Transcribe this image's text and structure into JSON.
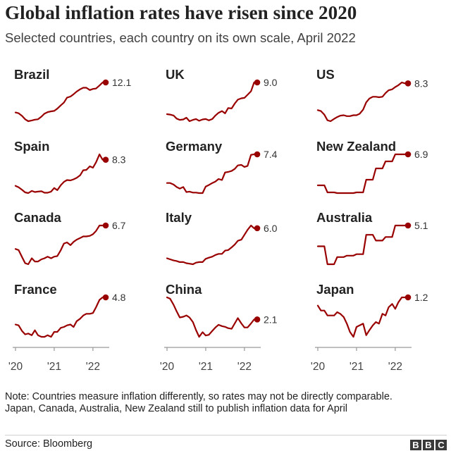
{
  "title": "Global inflation rates have risen since 2020",
  "subtitle": "Selected countries, each country on its own scale, April 2022",
  "note_lines": [
    "Note: Countries measure inflation differently, so rates may not be directly comparable.",
    "Japan, Canada, Australia, New Zealand still to publish inflation data for April"
  ],
  "source": "Source: Bloomberg",
  "logo": [
    "B",
    "B",
    "C"
  ],
  "colors": {
    "line": "#990000",
    "axis": "#999999",
    "text": "#222222"
  },
  "chart_data": {
    "type": "line",
    "x_start": 2020.0,
    "x_end": 2022.33,
    "x_ticks": [
      2020,
      2021,
      2022
    ],
    "x_tick_labels": [
      "'20",
      "'21",
      "'22"
    ],
    "panels": [
      {
        "name": "Brazil",
        "label": "12.1",
        "x": [
          2020.0,
          2020.08,
          2020.17,
          2020.25,
          2020.33,
          2020.42,
          2020.5,
          2020.58,
          2020.67,
          2020.75,
          2020.83,
          2020.92,
          2021.0,
          2021.08,
          2021.17,
          2021.25,
          2021.33,
          2021.42,
          2021.5,
          2021.58,
          2021.67,
          2021.75,
          2021.83,
          2021.92,
          2022.0,
          2022.08,
          2022.17,
          2022.25,
          2022.33
        ],
        "y": [
          4.2,
          4.0,
          3.3,
          2.4,
          1.9,
          2.1,
          2.3,
          2.4,
          3.1,
          3.9,
          4.3,
          4.5,
          4.6,
          5.2,
          6.1,
          6.8,
          8.1,
          8.4,
          9.0,
          9.7,
          10.3,
          10.7,
          10.7,
          10.1,
          10.4,
          10.5,
          11.3,
          12.1,
          12.1
        ]
      },
      {
        "name": "UK",
        "label": "9.0",
        "x": [
          2020.0,
          2020.08,
          2020.17,
          2020.25,
          2020.33,
          2020.42,
          2020.5,
          2020.58,
          2020.67,
          2020.75,
          2020.83,
          2020.92,
          2021.0,
          2021.08,
          2021.17,
          2021.25,
          2021.33,
          2021.42,
          2021.5,
          2021.58,
          2021.67,
          2021.75,
          2021.83,
          2021.92,
          2022.0,
          2022.08,
          2022.17,
          2022.25,
          2022.33
        ],
        "y": [
          1.8,
          1.7,
          1.5,
          0.8,
          0.5,
          0.6,
          1.0,
          0.2,
          0.5,
          0.7,
          0.3,
          0.6,
          0.7,
          0.4,
          0.7,
          1.5,
          2.1,
          2.5,
          2.0,
          3.2,
          3.1,
          4.2,
          5.1,
          5.4,
          5.5,
          6.2,
          7.0,
          9.0,
          9.0
        ]
      },
      {
        "name": "US",
        "label": "8.3",
        "x": [
          2020.0,
          2020.08,
          2020.17,
          2020.25,
          2020.33,
          2020.42,
          2020.5,
          2020.58,
          2020.67,
          2020.75,
          2020.83,
          2020.92,
          2021.0,
          2021.08,
          2021.17,
          2021.25,
          2021.33,
          2021.42,
          2021.5,
          2021.58,
          2021.67,
          2021.75,
          2021.83,
          2021.92,
          2022.0,
          2022.08,
          2022.17,
          2022.25,
          2022.33
        ],
        "y": [
          2.5,
          2.3,
          1.5,
          0.3,
          0.1,
          0.6,
          1.0,
          1.3,
          1.4,
          1.2,
          1.2,
          1.4,
          1.4,
          1.7,
          2.6,
          4.2,
          5.0,
          5.4,
          5.4,
          5.3,
          5.4,
          6.2,
          6.8,
          7.0,
          7.5,
          7.9,
          8.5,
          8.3,
          8.3
        ]
      },
      {
        "name": "Spain",
        "label": "8.3",
        "x": [
          2020.0,
          2020.08,
          2020.17,
          2020.25,
          2020.33,
          2020.42,
          2020.5,
          2020.58,
          2020.67,
          2020.75,
          2020.83,
          2020.92,
          2021.0,
          2021.08,
          2021.17,
          2021.25,
          2021.33,
          2021.42,
          2021.5,
          2021.58,
          2021.67,
          2021.75,
          2021.83,
          2021.92,
          2022.0,
          2022.08,
          2022.17,
          2022.25,
          2022.33
        ],
        "y": [
          1.1,
          0.7,
          0.0,
          -0.7,
          -0.9,
          -0.3,
          -0.6,
          -0.5,
          -0.4,
          -0.8,
          -0.8,
          -0.5,
          0.5,
          -0.1,
          1.3,
          2.2,
          2.7,
          2.6,
          2.9,
          3.3,
          4.0,
          5.4,
          5.5,
          6.5,
          6.1,
          7.6,
          9.8,
          8.3,
          8.3
        ]
      },
      {
        "name": "Germany",
        "label": "7.4",
        "x": [
          2020.0,
          2020.08,
          2020.17,
          2020.25,
          2020.33,
          2020.42,
          2020.5,
          2020.58,
          2020.67,
          2020.75,
          2020.83,
          2020.92,
          2021.0,
          2021.08,
          2021.17,
          2021.25,
          2021.33,
          2021.42,
          2021.5,
          2021.58,
          2021.67,
          2021.75,
          2021.83,
          2021.92,
          2022.0,
          2022.08,
          2022.17,
          2022.25,
          2022.33
        ],
        "y": [
          1.7,
          1.7,
          1.4,
          0.9,
          0.6,
          0.9,
          -0.1,
          0.0,
          -0.2,
          -0.2,
          -0.3,
          -0.3,
          1.0,
          1.3,
          1.7,
          2.0,
          2.5,
          2.3,
          3.8,
          3.9,
          4.1,
          4.5,
          5.2,
          5.3,
          4.9,
          5.1,
          7.3,
          7.4,
          7.4
        ]
      },
      {
        "name": "New Zealand",
        "label": "6.9",
        "x": [
          2020.0,
          2020.08,
          2020.17,
          2020.25,
          2020.33,
          2020.42,
          2020.5,
          2020.58,
          2020.67,
          2020.75,
          2020.83,
          2020.92,
          2021.0,
          2021.08,
          2021.17,
          2021.25,
          2021.33,
          2021.42,
          2021.5,
          2021.58,
          2021.67,
          2021.75,
          2021.83,
          2021.92,
          2022.0,
          2022.08,
          2022.17,
          2022.25,
          2022.33
        ],
        "y": [
          2.5,
          2.5,
          2.5,
          1.5,
          1.5,
          1.5,
          1.4,
          1.4,
          1.4,
          1.4,
          1.4,
          1.4,
          1.5,
          1.5,
          1.5,
          3.3,
          3.3,
          3.3,
          4.9,
          4.9,
          4.9,
          5.9,
          5.9,
          5.9,
          6.9,
          6.9,
          6.9,
          6.9,
          6.9
        ]
      },
      {
        "name": "Canada",
        "label": "6.7",
        "x": [
          2020.0,
          2020.08,
          2020.17,
          2020.25,
          2020.33,
          2020.42,
          2020.5,
          2020.58,
          2020.67,
          2020.75,
          2020.83,
          2020.92,
          2021.0,
          2021.08,
          2021.17,
          2021.25,
          2021.33,
          2021.42,
          2021.5,
          2021.58,
          2021.67,
          2021.75,
          2021.83,
          2021.92,
          2022.0,
          2022.08,
          2022.17,
          2022.25,
          2022.33
        ],
        "y": [
          2.4,
          2.2,
          0.9,
          -0.2,
          -0.4,
          0.7,
          0.1,
          0.1,
          0.5,
          0.7,
          1.0,
          0.7,
          1.0,
          1.1,
          2.2,
          3.4,
          3.6,
          3.1,
          3.7,
          4.1,
          4.4,
          4.7,
          4.7,
          4.8,
          5.1,
          5.7,
          6.7,
          6.7,
          6.7
        ]
      },
      {
        "name": "Italy",
        "label": "6.0",
        "x": [
          2020.0,
          2020.08,
          2020.17,
          2020.25,
          2020.33,
          2020.42,
          2020.5,
          2020.58,
          2020.67,
          2020.75,
          2020.83,
          2020.92,
          2021.0,
          2021.08,
          2021.17,
          2021.25,
          2021.33,
          2021.42,
          2021.5,
          2021.58,
          2021.67,
          2021.75,
          2021.83,
          2021.92,
          2022.0,
          2022.08,
          2022.17,
          2022.25,
          2022.33
        ],
        "y": [
          0.5,
          0.3,
          0.1,
          0.0,
          -0.2,
          -0.2,
          -0.4,
          -0.5,
          -0.6,
          -0.3,
          -0.2,
          -0.2,
          0.4,
          0.6,
          0.8,
          1.1,
          1.3,
          1.3,
          1.9,
          2.0,
          2.5,
          3.0,
          3.7,
          3.9,
          4.8,
          5.7,
          6.5,
          6.0,
          6.0
        ]
      },
      {
        "name": "Australia",
        "label": "5.1",
        "x": [
          2020.0,
          2020.08,
          2020.17,
          2020.25,
          2020.33,
          2020.42,
          2020.5,
          2020.58,
          2020.67,
          2020.75,
          2020.83,
          2020.92,
          2021.0,
          2021.08,
          2021.17,
          2021.25,
          2021.33,
          2021.42,
          2021.5,
          2021.58,
          2021.67,
          2021.75,
          2021.83,
          2021.92,
          2022.0,
          2022.08,
          2022.17,
          2022.25,
          2022.33
        ],
        "y": [
          2.2,
          2.2,
          2.2,
          -0.3,
          -0.3,
          -0.3,
          0.7,
          0.7,
          0.7,
          0.9,
          0.9,
          0.9,
          1.1,
          1.1,
          1.1,
          3.8,
          3.8,
          3.8,
          3.0,
          3.0,
          3.0,
          3.5,
          3.5,
          3.5,
          5.1,
          5.1,
          5.1,
          5.1,
          5.1
        ]
      },
      {
        "name": "France",
        "label": "4.8",
        "x": [
          2020.0,
          2020.08,
          2020.17,
          2020.25,
          2020.33,
          2020.42,
          2020.5,
          2020.58,
          2020.67,
          2020.75,
          2020.83,
          2020.92,
          2021.0,
          2021.08,
          2021.17,
          2021.25,
          2021.33,
          2021.42,
          2021.5,
          2021.58,
          2021.67,
          2021.75,
          2021.83,
          2021.92,
          2022.0,
          2022.08,
          2022.17,
          2022.25,
          2022.33
        ],
        "y": [
          1.5,
          1.4,
          0.7,
          0.3,
          0.4,
          0.2,
          0.8,
          0.2,
          0.0,
          0.0,
          0.2,
          0.0,
          0.6,
          0.6,
          1.1,
          1.2,
          1.4,
          1.5,
          1.2,
          1.9,
          2.2,
          2.6,
          2.8,
          2.8,
          2.9,
          3.6,
          4.5,
          4.8,
          4.8
        ]
      },
      {
        "name": "China",
        "label": "2.1",
        "x": [
          2020.0,
          2020.08,
          2020.17,
          2020.25,
          2020.33,
          2020.42,
          2020.5,
          2020.58,
          2020.67,
          2020.75,
          2020.83,
          2020.92,
          2021.0,
          2021.08,
          2021.17,
          2021.25,
          2021.33,
          2021.42,
          2021.5,
          2021.58,
          2021.67,
          2021.75,
          2021.83,
          2021.92,
          2022.0,
          2022.08,
          2022.17,
          2022.25,
          2022.33
        ],
        "y": [
          5.4,
          5.2,
          4.3,
          3.3,
          2.4,
          2.5,
          2.7,
          2.4,
          1.7,
          0.5,
          -0.5,
          0.2,
          -0.3,
          -0.2,
          0.4,
          0.9,
          1.3,
          1.1,
          1.0,
          0.8,
          0.7,
          1.5,
          2.3,
          1.5,
          0.9,
          0.9,
          1.5,
          2.1,
          2.1
        ]
      },
      {
        "name": "Japan",
        "label": "1.2",
        "x": [
          2020.0,
          2020.08,
          2020.17,
          2020.25,
          2020.33,
          2020.42,
          2020.5,
          2020.58,
          2020.67,
          2020.75,
          2020.83,
          2020.92,
          2021.0,
          2021.08,
          2021.17,
          2021.25,
          2021.33,
          2021.42,
          2021.5,
          2021.58,
          2021.67,
          2021.75,
          2021.83,
          2021.92,
          2022.0,
          2022.08,
          2022.17,
          2022.25,
          2022.33
        ],
        "y": [
          0.7,
          0.4,
          0.4,
          0.1,
          0.1,
          0.1,
          0.3,
          0.2,
          0.0,
          -0.4,
          -0.9,
          -1.2,
          -0.6,
          -0.5,
          -0.4,
          -1.1,
          -0.8,
          -0.5,
          -0.3,
          -0.4,
          0.2,
          0.1,
          0.6,
          0.8,
          0.5,
          0.9,
          1.2,
          1.2,
          1.2
        ]
      }
    ]
  }
}
